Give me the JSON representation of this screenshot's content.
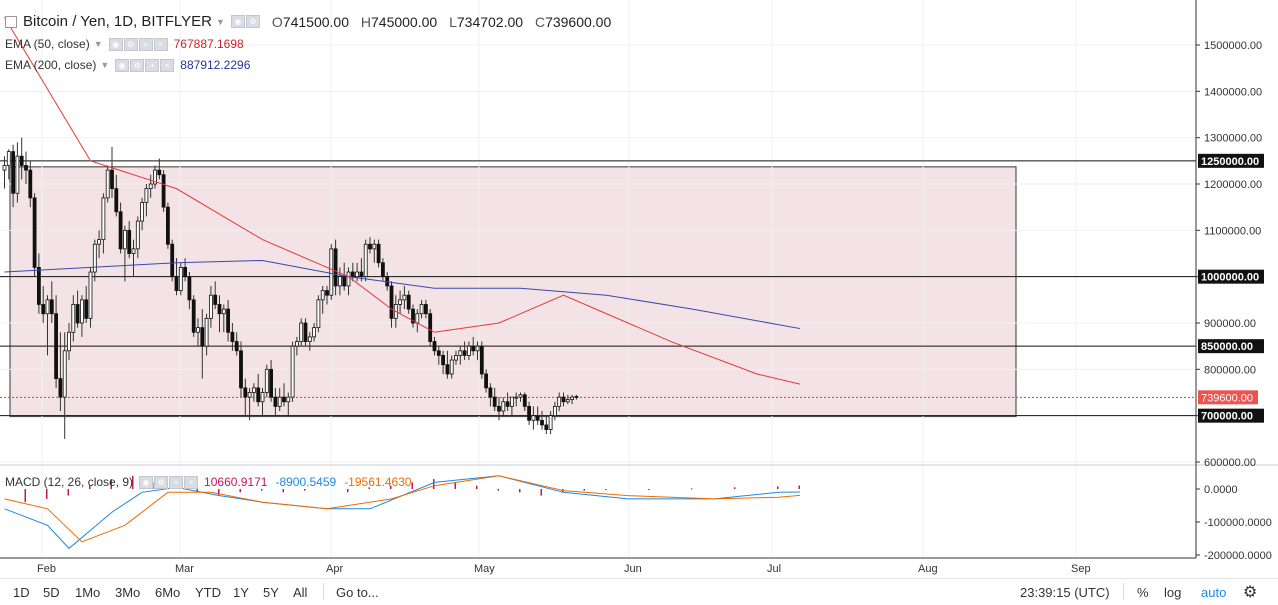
{
  "header": {
    "title": "Bitcoin / Yen, 1D, BITFLYER",
    "open_label": "O",
    "open": "741500.00",
    "high_label": "H",
    "high": "745000.00",
    "low_label": "L",
    "low": "734702.00",
    "close_label": "C",
    "close": "739600.00"
  },
  "indicators": {
    "ema50": {
      "label": "EMA (50, close)",
      "value": "767887.1698",
      "color": "#e53935"
    },
    "ema200": {
      "label": "EMA (200, close)",
      "value": "887912.2296",
      "color": "#3949ab"
    },
    "macd": {
      "label": "MACD (12, 26, close, 9)",
      "hist": "10660.9171",
      "macd": "-8900.5459",
      "signal": "-19561.4630"
    }
  },
  "bottom_bar": {
    "timeframes": [
      "1D",
      "5D",
      "1Mo",
      "3Mo",
      "6Mo",
      "YTD",
      "1Y",
      "5Y",
      "All"
    ],
    "goto": "Go to...",
    "time": "23:39:15 (UTC)",
    "percent": "%",
    "log": "log",
    "auto": "auto"
  },
  "chart_data": {
    "type": "candlestick",
    "symbol": "Bitcoin / Yen",
    "interval": "1D",
    "exchange": "BITFLYER",
    "price_axis": {
      "ticks": [
        "1500000.00",
        "1400000.00",
        "1300000.00",
        "1200000.00",
        "1100000.00",
        "1000000.00",
        "900000.00",
        "800000.00",
        "700000.00",
        "600000.00"
      ]
    },
    "time_axis": {
      "ticks": [
        "Feb",
        "Mar",
        "Apr",
        "May",
        "Jun",
        "Jul",
        "Aug",
        "Sep"
      ]
    },
    "macd_axis": {
      "ticks": [
        "0.0000",
        "-100000.0000",
        "-200000.0000"
      ]
    },
    "horizontal_lines": [
      {
        "price": 1250000,
        "label": "1250000.00"
      },
      {
        "price": 1000000,
        "label": "1000000.00"
      },
      {
        "price": 850000,
        "label": "850000.00"
      },
      {
        "price": 700000,
        "label": "700000.00"
      }
    ],
    "last_price": {
      "price": 739600,
      "label": "739600.00"
    },
    "range_box": {
      "top_price": 1237000,
      "bottom_price": 698000,
      "start": "Jan 19",
      "end": "Aug 18",
      "color": "#f3e3e7"
    },
    "candles": [
      [
        1230000,
        1260000,
        1190000,
        1240000
      ],
      [
        1240000,
        1275000,
        1210000,
        1270000
      ],
      [
        1270000,
        1285000,
        1150000,
        1180000
      ],
      [
        1180000,
        1290000,
        1160000,
        1260000
      ],
      [
        1260000,
        1300000,
        1210000,
        1240000
      ],
      [
        1240000,
        1270000,
        1200000,
        1230000
      ],
      [
        1230000,
        1250000,
        1150000,
        1170000
      ],
      [
        1170000,
        1180000,
        1000000,
        1020000
      ],
      [
        1020000,
        1050000,
        920000,
        940000
      ],
      [
        940000,
        980000,
        900000,
        920000
      ],
      [
        920000,
        960000,
        830000,
        950000
      ],
      [
        950000,
        990000,
        900000,
        920000
      ],
      [
        920000,
        960000,
        760000,
        780000
      ],
      [
        780000,
        880000,
        710000,
        740000
      ],
      [
        740000,
        880000,
        650000,
        840000
      ],
      [
        840000,
        900000,
        820000,
        880000
      ],
      [
        880000,
        960000,
        860000,
        940000
      ],
      [
        940000,
        970000,
        890000,
        900000
      ],
      [
        900000,
        960000,
        870000,
        950000
      ],
      [
        950000,
        980000,
        900000,
        910000
      ],
      [
        910000,
        1020000,
        890000,
        1010000
      ],
      [
        1010000,
        1080000,
        990000,
        1070000
      ],
      [
        1070000,
        1100000,
        1040000,
        1080000
      ],
      [
        1080000,
        1180000,
        1050000,
        1170000
      ],
      [
        1170000,
        1240000,
        1160000,
        1230000
      ],
      [
        1230000,
        1280000,
        1170000,
        1190000
      ],
      [
        1190000,
        1220000,
        1130000,
        1140000
      ],
      [
        1140000,
        1160000,
        1050000,
        1060000
      ],
      [
        1060000,
        1110000,
        990000,
        1100000
      ],
      [
        1100000,
        1120000,
        1040000,
        1050000
      ],
      [
        1050000,
        1080000,
        1000000,
        1060000
      ],
      [
        1060000,
        1130000,
        1040000,
        1120000
      ],
      [
        1120000,
        1170000,
        1100000,
        1160000
      ],
      [
        1160000,
        1200000,
        1130000,
        1190000
      ],
      [
        1190000,
        1220000,
        1170000,
        1200000
      ],
      [
        1200000,
        1240000,
        1190000,
        1230000
      ],
      [
        1230000,
        1255000,
        1210000,
        1220000
      ],
      [
        1220000,
        1230000,
        1140000,
        1150000
      ],
      [
        1150000,
        1160000,
        1060000,
        1070000
      ],
      [
        1070000,
        1080000,
        990000,
        1000000
      ],
      [
        1000000,
        1040000,
        960000,
        970000
      ],
      [
        970000,
        1030000,
        960000,
        1020000
      ],
      [
        1020000,
        1040000,
        990000,
        1000000
      ],
      [
        1000000,
        1010000,
        930000,
        950000
      ],
      [
        950000,
        960000,
        870000,
        880000
      ],
      [
        880000,
        910000,
        850000,
        890000
      ],
      [
        890000,
        930000,
        780000,
        850000
      ],
      [
        850000,
        920000,
        830000,
        910000
      ],
      [
        910000,
        980000,
        890000,
        960000
      ],
      [
        960000,
        990000,
        930000,
        940000
      ],
      [
        940000,
        960000,
        880000,
        920000
      ],
      [
        920000,
        940000,
        880000,
        930000
      ],
      [
        930000,
        950000,
        860000,
        880000
      ],
      [
        880000,
        900000,
        840000,
        860000
      ],
      [
        860000,
        880000,
        830000,
        840000
      ],
      [
        840000,
        860000,
        740000,
        760000
      ],
      [
        760000,
        780000,
        700000,
        740000
      ],
      [
        740000,
        760000,
        690000,
        750000
      ],
      [
        750000,
        770000,
        730000,
        760000
      ],
      [
        760000,
        790000,
        720000,
        730000
      ],
      [
        730000,
        760000,
        700000,
        750000
      ],
      [
        750000,
        810000,
        740000,
        800000
      ],
      [
        800000,
        820000,
        730000,
        740000
      ],
      [
        740000,
        760000,
        700000,
        720000
      ],
      [
        720000,
        760000,
        710000,
        740000
      ],
      [
        740000,
        770000,
        720000,
        730000
      ],
      [
        730000,
        750000,
        700000,
        740000
      ],
      [
        740000,
        860000,
        730000,
        850000
      ],
      [
        850000,
        870000,
        830000,
        860000
      ],
      [
        860000,
        910000,
        850000,
        900000
      ],
      [
        900000,
        910000,
        850000,
        860000
      ],
      [
        860000,
        880000,
        840000,
        870000
      ],
      [
        870000,
        900000,
        860000,
        890000
      ],
      [
        890000,
        960000,
        880000,
        950000
      ],
      [
        950000,
        980000,
        920000,
        970000
      ],
      [
        970000,
        980000,
        940000,
        960000
      ],
      [
        960000,
        1070000,
        950000,
        1060000
      ],
      [
        1060000,
        1080000,
        960000,
        980000
      ],
      [
        980000,
        1020000,
        960000,
        1000000
      ],
      [
        1000000,
        1030000,
        970000,
        980000
      ],
      [
        980000,
        1020000,
        960000,
        1010000
      ],
      [
        1010000,
        1030000,
        990000,
        1000000
      ],
      [
        1000000,
        1030000,
        990000,
        1010000
      ],
      [
        1010000,
        1040000,
        990000,
        1000000
      ],
      [
        1000000,
        1080000,
        990000,
        1070000
      ],
      [
        1070000,
        1085000,
        1050000,
        1060000
      ],
      [
        1060000,
        1080000,
        1030000,
        1070000
      ],
      [
        1070000,
        1080000,
        1020000,
        1030000
      ],
      [
        1030000,
        1040000,
        990000,
        1000000
      ],
      [
        1000000,
        1010000,
        970000,
        980000
      ],
      [
        980000,
        990000,
        890000,
        910000
      ],
      [
        910000,
        960000,
        890000,
        940000
      ],
      [
        940000,
        970000,
        920000,
        950000
      ],
      [
        950000,
        980000,
        930000,
        960000
      ],
      [
        960000,
        970000,
        920000,
        930000
      ],
      [
        930000,
        940000,
        890000,
        900000
      ],
      [
        900000,
        930000,
        880000,
        920000
      ],
      [
        920000,
        950000,
        910000,
        940000
      ],
      [
        940000,
        950000,
        910000,
        920000
      ],
      [
        920000,
        930000,
        850000,
        860000
      ],
      [
        860000,
        870000,
        830000,
        840000
      ],
      [
        840000,
        850000,
        810000,
        830000
      ],
      [
        830000,
        840000,
        790000,
        810000
      ],
      [
        810000,
        840000,
        780000,
        790000
      ],
      [
        790000,
        830000,
        780000,
        820000
      ],
      [
        820000,
        840000,
        810000,
        830000
      ],
      [
        830000,
        850000,
        810000,
        840000
      ],
      [
        840000,
        860000,
        820000,
        830000
      ],
      [
        830000,
        860000,
        820000,
        850000
      ],
      [
        850000,
        870000,
        830000,
        840000
      ],
      [
        840000,
        860000,
        820000,
        850000
      ],
      [
        850000,
        860000,
        780000,
        790000
      ],
      [
        790000,
        800000,
        750000,
        760000
      ],
      [
        760000,
        770000,
        720000,
        740000
      ],
      [
        740000,
        760000,
        710000,
        720000
      ],
      [
        720000,
        740000,
        690000,
        710000
      ],
      [
        710000,
        740000,
        700000,
        730000
      ],
      [
        730000,
        750000,
        710000,
        720000
      ],
      [
        720000,
        740000,
        700000,
        740000
      ],
      [
        740000,
        750000,
        720000,
        740000
      ],
      [
        740000,
        750000,
        730000,
        745000
      ],
      [
        745000,
        750000,
        710000,
        720000
      ],
      [
        720000,
        730000,
        680000,
        690000
      ],
      [
        690000,
        720000,
        670000,
        700000
      ],
      [
        700000,
        720000,
        680000,
        690000
      ],
      [
        690000,
        710000,
        670000,
        680000
      ],
      [
        680000,
        700000,
        660000,
        670000
      ],
      [
        670000,
        710000,
        660000,
        700000
      ],
      [
        700000,
        730000,
        690000,
        720000
      ],
      [
        720000,
        750000,
        710000,
        740000
      ],
      [
        740000,
        750000,
        720000,
        730000
      ],
      [
        730000,
        745000,
        725000,
        735000
      ],
      [
        735000,
        745000,
        725000,
        740000
      ],
      [
        741500,
        745000,
        734702,
        739600
      ]
    ],
    "ema50": [
      [
        0,
        1560000
      ],
      [
        20,
        1250000
      ],
      [
        40,
        1190000
      ],
      [
        60,
        1080000
      ],
      [
        80,
        1000000
      ],
      [
        90,
        930000
      ],
      [
        100,
        880000
      ],
      [
        115,
        900000
      ],
      [
        130,
        960000
      ],
      [
        140,
        920000
      ],
      [
        155,
        860000
      ],
      [
        175,
        790000
      ],
      [
        185,
        768000
      ]
    ],
    "ema200": [
      [
        0,
        1010000
      ],
      [
        40,
        1030000
      ],
      [
        60,
        1035000
      ],
      [
        80,
        1000000
      ],
      [
        100,
        975000
      ],
      [
        120,
        975000
      ],
      [
        140,
        960000
      ],
      [
        160,
        930000
      ],
      [
        185,
        888000
      ]
    ],
    "macd_series": {
      "macd": [
        [
          0,
          -60000
        ],
        [
          10,
          -110000
        ],
        [
          15,
          -180000
        ],
        [
          25,
          -70000
        ],
        [
          32,
          -10000
        ],
        [
          40,
          5000
        ],
        [
          50,
          -20000
        ],
        [
          60,
          -40000
        ],
        [
          75,
          -60000
        ],
        [
          85,
          -60000
        ],
        [
          100,
          20000
        ],
        [
          115,
          40000
        ],
        [
          130,
          -10000
        ],
        [
          145,
          -30000
        ],
        [
          165,
          -30000
        ],
        [
          180,
          -10000
        ],
        [
          185,
          -9000
        ]
      ],
      "signal": [
        [
          0,
          -30000
        ],
        [
          10,
          -60000
        ],
        [
          18,
          -160000
        ],
        [
          28,
          -110000
        ],
        [
          38,
          -10000
        ],
        [
          48,
          -10000
        ],
        [
          60,
          -40000
        ],
        [
          75,
          -60000
        ],
        [
          90,
          -30000
        ],
        [
          100,
          10000
        ],
        [
          115,
          40000
        ],
        [
          130,
          -5000
        ],
        [
          145,
          -20000
        ],
        [
          165,
          -30000
        ],
        [
          180,
          -25000
        ],
        [
          185,
          -19500
        ]
      ],
      "hist": [
        [
          5,
          -40000
        ],
        [
          10,
          -30000
        ],
        [
          15,
          -20000
        ],
        [
          20,
          10000
        ],
        [
          25,
          30000
        ],
        [
          30,
          40000
        ],
        [
          35,
          20000
        ],
        [
          40,
          10000
        ],
        [
          45,
          -10000
        ],
        [
          50,
          -20000
        ],
        [
          55,
          -10000
        ],
        [
          60,
          -5000
        ],
        [
          65,
          -10000
        ],
        [
          70,
          -5000
        ],
        [
          80,
          -10000
        ],
        [
          85,
          5000
        ],
        [
          90,
          10000
        ],
        [
          95,
          20000
        ],
        [
          100,
          30000
        ],
        [
          105,
          20000
        ],
        [
          110,
          10000
        ],
        [
          115,
          -5000
        ],
        [
          120,
          -10000
        ],
        [
          125,
          -20000
        ],
        [
          130,
          -10000
        ],
        [
          135,
          -5000
        ],
        [
          140,
          -3000
        ],
        [
          150,
          -2000
        ],
        [
          160,
          2000
        ],
        [
          170,
          5000
        ],
        [
          180,
          8000
        ],
        [
          185,
          10660
        ]
      ]
    }
  }
}
